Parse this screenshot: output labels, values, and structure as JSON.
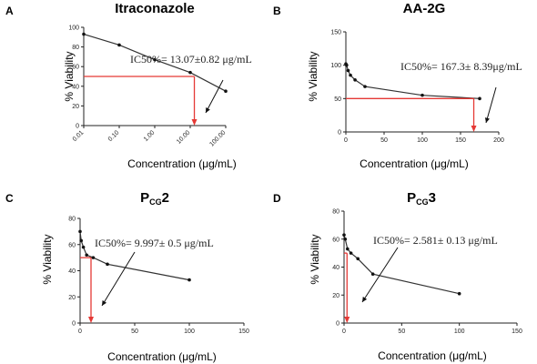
{
  "chart_data": [
    {
      "panel": "A",
      "title": "Itraconazole",
      "type": "line",
      "xscale": "log",
      "xlabel": "Concentration (μg/mL)",
      "ylabel": "% Viability",
      "xlim": [
        0.01,
        100
      ],
      "ylim": [
        0,
        100
      ],
      "xticks": [
        "0.01",
        "0.10",
        "1.00",
        "10.00",
        "100.00"
      ],
      "yticks": [
        "0",
        "20",
        "40",
        "60",
        "80",
        "100"
      ],
      "x": [
        0.01,
        0.1,
        1,
        10,
        100
      ],
      "y": [
        93,
        82,
        67,
        54,
        35
      ],
      "ic50_x": 13.07,
      "ic50_y": 50,
      "annotation": "IC50%= 13.07±0.82 μg/mL",
      "arrow_color": "#e53935"
    },
    {
      "panel": "B",
      "title": "AA-2G",
      "type": "line",
      "xlabel": "Concentration (μg/mL)",
      "ylabel": "% Viability",
      "xlim": [
        0,
        200
      ],
      "ylim": [
        0,
        150
      ],
      "xticks": [
        "0",
        "50",
        "100",
        "150",
        "200"
      ],
      "yticks": [
        "0",
        "50",
        "100",
        "150"
      ],
      "x": [
        0,
        1,
        3,
        6,
        12,
        25,
        100,
        175
      ],
      "y": [
        102,
        100,
        92,
        85,
        78,
        68,
        55,
        50
      ],
      "ic50_x": 167.3,
      "ic50_y": 50,
      "annotation": "IC50%= 167.3± 8.39μg/mL",
      "arrow_color": "#e53935"
    },
    {
      "panel": "C",
      "title_main": "P",
      "title_sub": "CG",
      "title_tail": "2",
      "type": "line",
      "xlabel": "Concentration (μg/mL)",
      "ylabel": "% Viability",
      "xlim": [
        0,
        150
      ],
      "ylim": [
        0,
        80
      ],
      "xticks": [
        "0",
        "50",
        "100",
        "150"
      ],
      "yticks": [
        "0",
        "20",
        "40",
        "60",
        "80"
      ],
      "x": [
        0,
        1,
        3,
        6,
        12,
        25,
        100
      ],
      "y": [
        70,
        63,
        58,
        52,
        50,
        45,
        33
      ],
      "ic50_x": 9.997,
      "ic50_y": 50,
      "annotation": "IC50%= 9.997± 0.5 μg/mL",
      "arrow_color": "#e53935"
    },
    {
      "panel": "D",
      "title_main": "P",
      "title_sub": "CG",
      "title_tail": "3",
      "type": "line",
      "xlabel": "Concentration (μg/mL)",
      "ylabel": "% Viability",
      "xlim": [
        0,
        150
      ],
      "ylim": [
        0,
        80
      ],
      "xticks": [
        "0",
        "50",
        "100",
        "150"
      ],
      "yticks": [
        "0",
        "20",
        "40",
        "60",
        "80"
      ],
      "x": [
        0,
        1,
        3,
        6,
        12,
        25,
        100
      ],
      "y": [
        63,
        60,
        53,
        50,
        46,
        35,
        21
      ],
      "ic50_x": 2.581,
      "ic50_y": 50,
      "annotation": "IC50%= 2.581± 0.13 μg/mL",
      "arrow_color": "#e53935"
    }
  ]
}
